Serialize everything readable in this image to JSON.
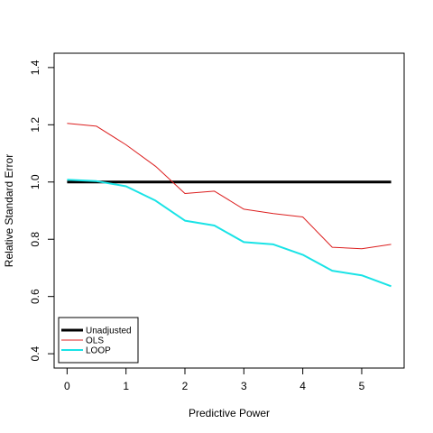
{
  "chart_data": {
    "type": "line",
    "xlabel": "Predictive Power",
    "ylabel": "Relative Standard Error",
    "xlim": [
      -0.22,
      5.72
    ],
    "ylim": [
      0.35,
      1.45
    ],
    "xticks": [
      "0",
      "1",
      "2",
      "3",
      "4",
      "5"
    ],
    "yticks": [
      "0.4",
      "0.6",
      "0.8",
      "1.0",
      "1.2",
      "1.4"
    ],
    "legend_position": "bottom-left",
    "series": [
      {
        "name": "Unadjusted",
        "color": "#000000",
        "width": 3,
        "x": [
          0,
          5.5
        ],
        "y": [
          1.0,
          1.0
        ]
      },
      {
        "name": "OLS",
        "color": "#dc1f1f",
        "width": 1,
        "x": [
          0,
          0.5,
          1.0,
          1.5,
          2.0,
          2.5,
          3.0,
          3.5,
          4.0,
          4.5,
          5.0,
          5.5
        ],
        "y": [
          1.205,
          1.195,
          1.13,
          1.055,
          0.96,
          0.968,
          0.905,
          0.89,
          0.878,
          0.772,
          0.767,
          0.782
        ]
      },
      {
        "name": "LOOP",
        "color": "#19e3e6",
        "width": 2,
        "x": [
          0,
          0.5,
          1.0,
          1.5,
          2.0,
          2.5,
          3.0,
          3.5,
          4.0,
          4.5,
          5.0,
          5.5
        ],
        "y": [
          1.008,
          1.003,
          0.985,
          0.935,
          0.865,
          0.848,
          0.79,
          0.782,
          0.746,
          0.69,
          0.674,
          0.636
        ]
      }
    ]
  }
}
